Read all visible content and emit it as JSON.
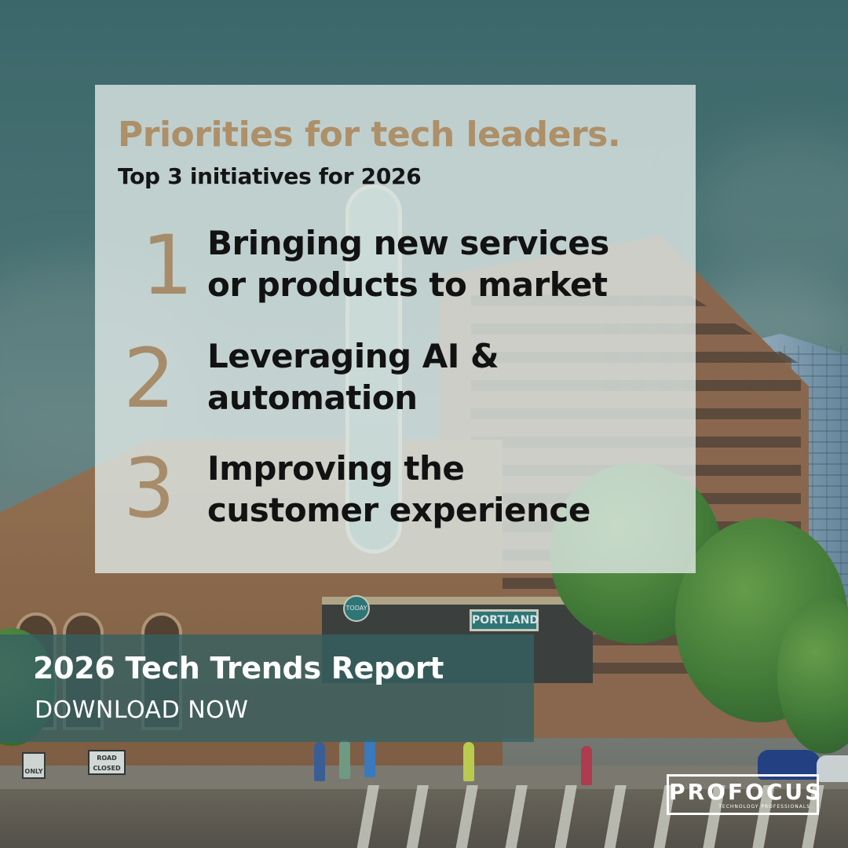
{
  "card": {
    "heading": "Priorities for tech leaders.",
    "subheading": "Top 3 initiatives for 2026",
    "items": [
      {
        "number": "1",
        "line1": "Bringing new services",
        "line2": "or products to market"
      },
      {
        "number": "2",
        "line1": "Leveraging AI &",
        "line2": "automation"
      },
      {
        "number": "3",
        "line1": "Improving the",
        "line2": "customer experience"
      }
    ]
  },
  "banner": {
    "title": "2026 Tech Trends Report",
    "cta": "DOWNLOAD NOW"
  },
  "logo": {
    "text": "PROFOCUS",
    "tagline": "TECHNOLOGY PROFESSIONALS"
  },
  "scene": {
    "marquee_sign": "PORTLAND",
    "marquee_badge": "TODAY",
    "street_sign": "ROAD CLOSED",
    "turn_sign": "ONLY"
  },
  "colors": {
    "accent_gold": "#ad8f68",
    "banner_teal": "#366062",
    "text_dark": "#121212"
  }
}
